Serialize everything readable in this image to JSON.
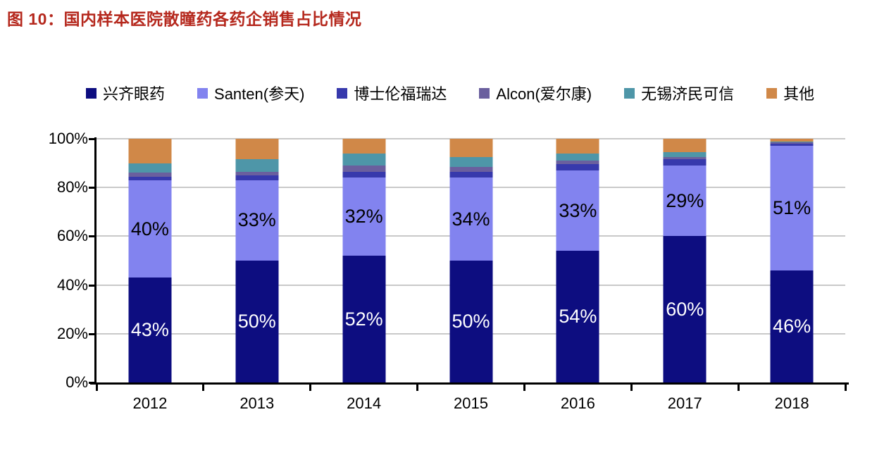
{
  "title": "图 10：国内样本医院散瞳药各药企销售占比情况",
  "title_color": "#b5281d",
  "chart_data": {
    "type": "stacked-bar",
    "title": "国内样本医院散瞳药各药企销售占比情况",
    "figure_label": "图 10",
    "categories": [
      "2012",
      "2013",
      "2014",
      "2015",
      "2016",
      "2017",
      "2018"
    ],
    "series": [
      {
        "name": "兴齐眼药",
        "color": "#0d0d80",
        "label_color": "#ffffff",
        "show_labels": true,
        "values": [
          43,
          50,
          52,
          50,
          54,
          60,
          46
        ]
      },
      {
        "name": "Santen(参天)",
        "color": "#8283ef",
        "label_color": "#000000",
        "show_labels": true,
        "values": [
          40,
          33,
          32,
          34,
          33,
          29,
          51
        ]
      },
      {
        "name": "博士伦福瑞达",
        "color": "#3739ac",
        "label_color": "#000000",
        "show_labels": false,
        "values": [
          1.5,
          2,
          2.5,
          2.5,
          2.5,
          2.5,
          1
        ]
      },
      {
        "name": "Alcon(爱尔康)",
        "color": "#6a5f9e",
        "label_color": "#000000",
        "show_labels": false,
        "values": [
          1.5,
          1.5,
          2.5,
          2,
          1.5,
          1,
          0.5
        ]
      },
      {
        "name": "无锡济民可信",
        "color": "#4e96a8",
        "label_color": "#000000",
        "show_labels": false,
        "values": [
          4,
          5,
          5,
          4,
          3,
          2,
          0.5
        ]
      },
      {
        "name": "其他",
        "color": "#d08848",
        "label_color": "#000000",
        "show_labels": false,
        "values": [
          10,
          8.5,
          6,
          7.5,
          6,
          5.5,
          1
        ]
      }
    ],
    "y_ticks": [
      0,
      20,
      40,
      60,
      80,
      100
    ],
    "y_tick_labels": [
      "0%",
      "20%",
      "40%",
      "60%",
      "80%",
      "100%"
    ],
    "ylim": [
      0,
      100
    ],
    "value_suffix": "%",
    "grid": true,
    "gridline_color": "#c9c9c9",
    "legend_position": "top"
  }
}
